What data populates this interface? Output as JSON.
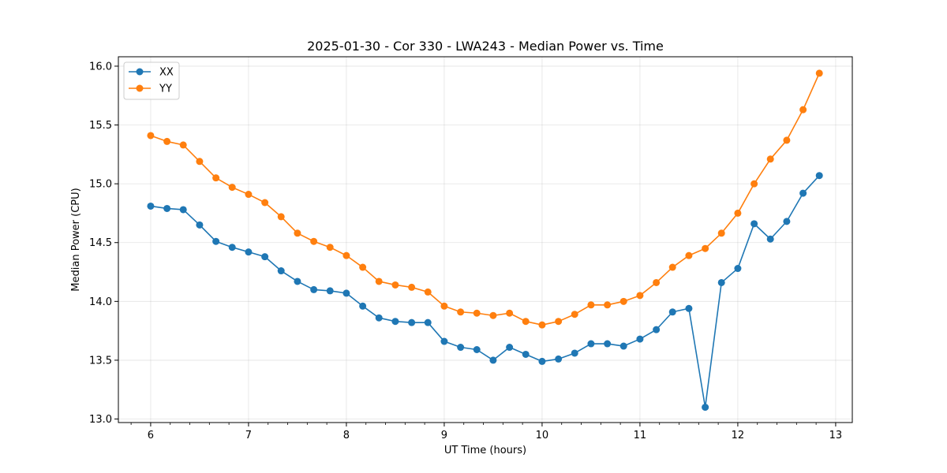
{
  "chart_data": {
    "type": "line",
    "title": "2025-01-30 - Cor 330 - LWA243 - Median Power vs. Time",
    "xlabel": "UT Time (hours)",
    "ylabel": "Median Power (CPU)",
    "xlim": [
      5.67,
      13.17
    ],
    "ylim": [
      12.97,
      16.08
    ],
    "xticks": [
      6,
      7,
      8,
      9,
      10,
      11,
      12,
      13
    ],
    "xtick_labels": [
      "6",
      "7",
      "8",
      "9",
      "10",
      "11",
      "12",
      "13"
    ],
    "yticks": [
      13.0,
      13.5,
      14.0,
      14.5,
      15.0,
      15.5,
      16.0
    ],
    "ytick_labels": [
      "13.0",
      "13.5",
      "14.0",
      "14.5",
      "15.0",
      "15.5",
      "16.0"
    ],
    "grid": true,
    "legend_position": "top-left",
    "x": [
      6.0,
      6.167,
      6.333,
      6.5,
      6.667,
      6.833,
      7.0,
      7.167,
      7.333,
      7.5,
      7.667,
      7.833,
      8.0,
      8.167,
      8.333,
      8.5,
      8.667,
      8.833,
      9.0,
      9.167,
      9.333,
      9.5,
      9.667,
      9.833,
      10.0,
      10.167,
      10.333,
      10.5,
      10.667,
      10.833,
      11.0,
      11.167,
      11.333,
      11.5,
      11.667,
      11.833,
      12.0,
      12.167,
      12.333,
      12.5,
      12.667,
      12.833
    ],
    "series": [
      {
        "name": "XX",
        "color": "#1f77b4",
        "values": [
          14.81,
          14.79,
          14.78,
          14.65,
          14.51,
          14.46,
          14.42,
          14.38,
          14.26,
          14.17,
          14.1,
          14.09,
          14.07,
          13.96,
          13.86,
          13.83,
          13.82,
          13.82,
          13.66,
          13.61,
          13.59,
          13.5,
          13.61,
          13.55,
          13.49,
          13.51,
          13.56,
          13.64,
          13.64,
          13.62,
          13.68,
          13.76,
          13.91,
          13.94,
          13.1,
          14.16,
          14.28,
          14.66,
          14.53,
          14.68,
          14.92,
          15.07
        ]
      },
      {
        "name": "YY",
        "color": "#ff7f0e",
        "values": [
          15.41,
          15.36,
          15.33,
          15.19,
          15.05,
          14.97,
          14.91,
          14.84,
          14.72,
          14.58,
          14.51,
          14.46,
          14.39,
          14.29,
          14.17,
          14.14,
          14.12,
          14.08,
          13.96,
          13.91,
          13.9,
          13.88,
          13.9,
          13.83,
          13.8,
          13.83,
          13.89,
          13.97,
          13.97,
          14.0,
          14.05,
          14.16,
          14.29,
          14.39,
          14.45,
          14.58,
          14.75,
          15.0,
          15.21,
          15.37,
          15.63,
          15.94
        ]
      }
    ]
  }
}
